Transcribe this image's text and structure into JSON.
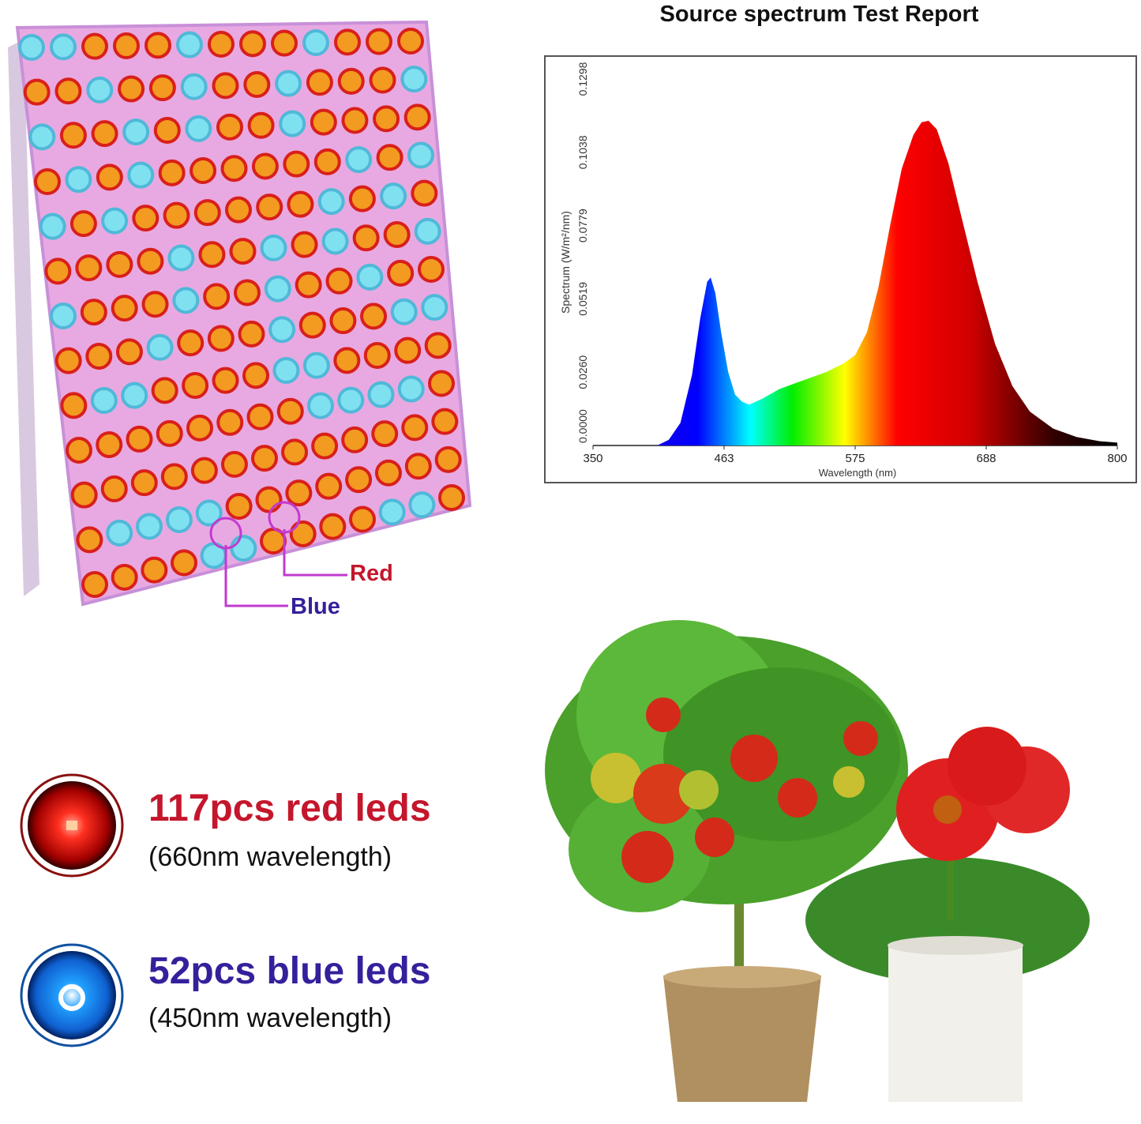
{
  "colors": {
    "red_text": "#c4162c",
    "blue_text": "#35209c",
    "panel": "#e6a6df",
    "label_line": "#c23ad0"
  },
  "panel": {
    "label_red": "Red",
    "label_blue": "Blue",
    "icon": "led-grow-panel"
  },
  "leds": [
    {
      "count_label": "117pcs red leds",
      "wavelength_label": "(660nm wavelength)",
      "icon": "red-led-icon"
    },
    {
      "count_label": "52pcs blue leds",
      "wavelength_label": "(450nm wavelength)",
      "icon": "blue-led-icon"
    }
  ],
  "chart_data": {
    "type": "area",
    "title": "Source spectrum Test Report",
    "xlabel": "Wavelength (nm)",
    "ylabel": "Spectrum (W/m²/nm)",
    "xlim": [
      350,
      800
    ],
    "ylim": [
      0,
      0.1298
    ],
    "xticks": [
      "350",
      "463",
      "575",
      "688",
      "800"
    ],
    "yticks": [
      "0.0000",
      "0.0260",
      "0.0519",
      "0.0779",
      "0.1038",
      "0.1298"
    ],
    "grid": false,
    "fill": "visible-spectrum gradient",
    "x": [
      350,
      405,
      415,
      425,
      435,
      442,
      448,
      451,
      455,
      460,
      466,
      472,
      478,
      484,
      495,
      510,
      530,
      550,
      565,
      575,
      585,
      595,
      605,
      615,
      625,
      632,
      638,
      645,
      655,
      665,
      680,
      695,
      710,
      725,
      745,
      765,
      785,
      800
    ],
    "y": [
      0,
      0,
      0.002,
      0.008,
      0.025,
      0.045,
      0.058,
      0.0595,
      0.054,
      0.04,
      0.026,
      0.018,
      0.0155,
      0.0145,
      0.0165,
      0.02,
      0.023,
      0.026,
      0.029,
      0.032,
      0.04,
      0.056,
      0.078,
      0.098,
      0.11,
      0.1145,
      0.115,
      0.112,
      0.1,
      0.083,
      0.058,
      0.036,
      0.021,
      0.012,
      0.006,
      0.003,
      0.0015,
      0.001
    ]
  },
  "plants": {
    "icon": "tomato-and-flower-plants"
  }
}
